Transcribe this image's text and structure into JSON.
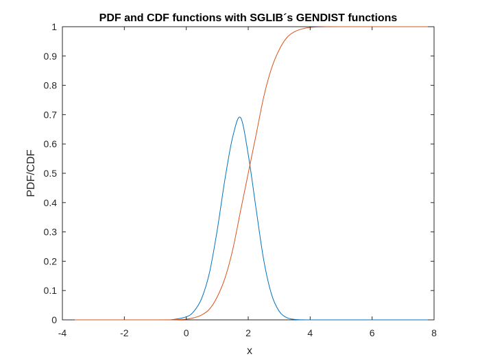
{
  "chart_data": {
    "type": "line",
    "title": "PDF and CDF functions with SGLIB´s GENDIST functions",
    "xlabel": "x",
    "ylabel": "PDF/CDF",
    "xlim": [
      -4,
      8
    ],
    "ylim": [
      0,
      1
    ],
    "x_ticks": [
      "-4",
      "-2",
      "0",
      "2",
      "4",
      "6",
      "8"
    ],
    "y_ticks": [
      "0",
      "0.1",
      "0.2",
      "0.3",
      "0.4",
      "0.5",
      "0.6",
      "0.7",
      "0.8",
      "0.9",
      "1"
    ],
    "grid": false,
    "box": true,
    "series": [
      {
        "color": "#0072BD",
        "x": [
          -3.6,
          -3.0,
          -2.5,
          -2.0,
          -1.5,
          -1.0,
          -0.5,
          0.0,
          0.25,
          0.5,
          0.75,
          1.0,
          1.25,
          1.5,
          1.75,
          2.0,
          2.25,
          2.5,
          2.75,
          3.0,
          3.25,
          3.5,
          3.75,
          4.0,
          4.5,
          5.0,
          5.5,
          6.0,
          6.5,
          7.0,
          7.5,
          7.8
        ],
        "values": [
          0,
          0,
          0,
          0,
          0,
          0,
          0.0004,
          0.0103,
          0.0296,
          0.0741,
          0.1614,
          0.3067,
          0.4808,
          0.6246,
          0.6904,
          0.5642,
          0.3815,
          0.2044,
          0.0878,
          0.0293,
          0.0074,
          0.0014,
          0.0002,
          2e-05,
          0,
          0,
          0,
          0,
          0,
          0,
          0,
          0
        ]
      },
      {
        "color": "#D95319",
        "x": [
          -3.6,
          -3.0,
          -2.5,
          -2.0,
          -1.5,
          -1.0,
          -0.5,
          0.0,
          0.25,
          0.5,
          0.75,
          1.0,
          1.25,
          1.5,
          1.75,
          2.0,
          2.25,
          2.5,
          2.75,
          3.0,
          3.25,
          3.5,
          3.75,
          4.0,
          4.5,
          5.0,
          5.5,
          6.0,
          6.5,
          7.0,
          7.5,
          7.8
        ],
        "values": [
          0,
          0,
          0,
          0,
          0,
          0,
          0.0002,
          0.0023,
          0.0072,
          0.0169,
          0.0368,
          0.0786,
          0.1427,
          0.2398,
          0.3707,
          0.5,
          0.6293,
          0.7602,
          0.8573,
          0.9214,
          0.9632,
          0.9831,
          0.9928,
          0.9977,
          0.9998,
          1,
          1,
          1,
          1,
          1,
          1,
          1
        ]
      }
    ]
  }
}
